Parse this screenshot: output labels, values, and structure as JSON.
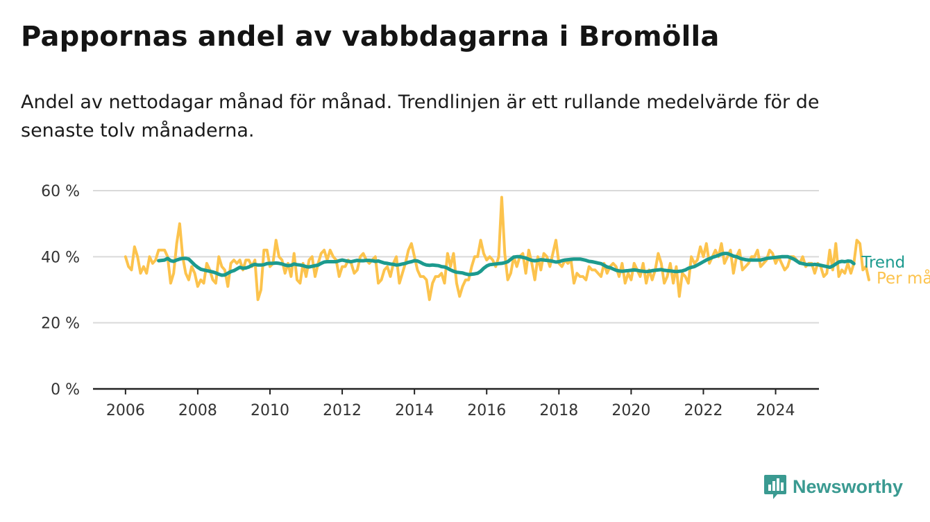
{
  "title": "Pappornas andel av vabbdagarna i Bromölla",
  "subtitle": "Andel av nettodagar månad för månad. Trendlinjen är ett rullande medelvärde för de senaste tolv månaderna.",
  "brand": {
    "name": "Newsworthy",
    "color": "#3a9a91"
  },
  "chart_data": {
    "type": "line",
    "x_ticks": [
      "2006",
      "2008",
      "2010",
      "2012",
      "2014",
      "2016",
      "2018",
      "2020",
      "2022",
      "2024"
    ],
    "y_ticks": [
      "0 %",
      "20 %",
      "40 %",
      "60 %"
    ],
    "ylim": [
      0,
      60
    ],
    "xlim": [
      2005.1,
      2025.2
    ],
    "grid": "horizontal",
    "legend": "end-of-line labels, right",
    "series": [
      {
        "name": "Per månad",
        "color": "#fcc34d",
        "start": 2006.0,
        "step_months": 1,
        "values": [
          40,
          37,
          36,
          43,
          40,
          35,
          37,
          35,
          40,
          38,
          39,
          42,
          42,
          42,
          40,
          32,
          35,
          44,
          50,
          40,
          35,
          33,
          37,
          35,
          31,
          33,
          32,
          38,
          36,
          33,
          32,
          40,
          37,
          36,
          31,
          38,
          39,
          38,
          39,
          36,
          39,
          39,
          37,
          39,
          27,
          30,
          42,
          42,
          37,
          38,
          45,
          40,
          39,
          35,
          38,
          34,
          41,
          33,
          32,
          38,
          34,
          39,
          40,
          34,
          38,
          41,
          42,
          39,
          42,
          40,
          39,
          34,
          37,
          37,
          39,
          38,
          35,
          36,
          40,
          41,
          39,
          38,
          39,
          40,
          32,
          33,
          36,
          37,
          34,
          38,
          40,
          32,
          35,
          38,
          42,
          44,
          40,
          36,
          34,
          34,
          33,
          27,
          32,
          34,
          34,
          35,
          32,
          41,
          37,
          41,
          32,
          28,
          31,
          33,
          33,
          37,
          40,
          40,
          45,
          41,
          39,
          40,
          39,
          37,
          40,
          58,
          41,
          33,
          35,
          40,
          37,
          40,
          41,
          35,
          42,
          38,
          33,
          40,
          36,
          41,
          40,
          37,
          41,
          45,
          38,
          37,
          39,
          38,
          39,
          32,
          35,
          34,
          34,
          33,
          37,
          36,
          36,
          35,
          34,
          38,
          35,
          37,
          38,
          37,
          34,
          38,
          32,
          35,
          33,
          38,
          36,
          34,
          38,
          32,
          36,
          33,
          36,
          41,
          38,
          32,
          34,
          38,
          32,
          37,
          28,
          35,
          34,
          32,
          40,
          38,
          39,
          43,
          40,
          44,
          38,
          40,
          42,
          40,
          44,
          38,
          40,
          42,
          35,
          40,
          42,
          36,
          37,
          38,
          40,
          40,
          42,
          37,
          38,
          39,
          42,
          41,
          38,
          40,
          38,
          36,
          37,
          40,
          40,
          39,
          38,
          40,
          37,
          38,
          38,
          35,
          38,
          37,
          34,
          35,
          42,
          36,
          44,
          34,
          36,
          35,
          38,
          35,
          38,
          45,
          44,
          36,
          37,
          33
        ]
      },
      {
        "name": "Trend",
        "color": "#1c9a8e",
        "start": 2006.917,
        "step_months": 1,
        "values": [
          38.8,
          38.9,
          39.0,
          39.5,
          38.8,
          38.6,
          39.0,
          39.3,
          39.5,
          39.5,
          39.3,
          38.4,
          37.5,
          36.8,
          36.2,
          36.0,
          35.8,
          35.6,
          35.4,
          35.1,
          34.7,
          34.4,
          34.5,
          35.0,
          35.5,
          35.8,
          36.3,
          36.8,
          36.5,
          36.6,
          36.9,
          37.4,
          37.7,
          37.5,
          37.5,
          37.6,
          37.9,
          38.0,
          38.0,
          38.1,
          38.0,
          37.8,
          37.5,
          37.3,
          37.4,
          37.8,
          37.6,
          37.5,
          37.3,
          37.0,
          36.9,
          37.1,
          37.3,
          37.5,
          38.0,
          38.4,
          38.5,
          38.5,
          38.5,
          38.5,
          38.8,
          39.0,
          38.8,
          38.6,
          38.5,
          38.7,
          38.9,
          38.8,
          38.8,
          38.9,
          38.9,
          38.8,
          38.6,
          38.7,
          38.4,
          38.1,
          38.0,
          37.8,
          37.7,
          37.5,
          37.6,
          37.8,
          38.0,
          38.3,
          38.5,
          38.8,
          38.7,
          38.3,
          37.8,
          37.5,
          37.4,
          37.5,
          37.4,
          37.3,
          37.0,
          36.9,
          36.5,
          36.0,
          35.6,
          35.3,
          35.2,
          35.1,
          34.8,
          34.6,
          34.7,
          34.8,
          35.0,
          35.6,
          36.5,
          37.2,
          37.6,
          37.7,
          37.8,
          37.9,
          38.0,
          38.2,
          38.5,
          39.2,
          39.9,
          40.0,
          40.0,
          39.8,
          39.6,
          39.2,
          38.9,
          38.8,
          38.9,
          39.1,
          39.0,
          38.9,
          38.8,
          38.6,
          38.4,
          38.5,
          38.8,
          39.0,
          39.1,
          39.2,
          39.3,
          39.3,
          39.3,
          39.1,
          38.9,
          38.6,
          38.5,
          38.3,
          38.1,
          37.9,
          37.4,
          36.9,
          36.7,
          36.3,
          35.9,
          35.7,
          35.6,
          35.7,
          35.8,
          35.9,
          36.0,
          35.9,
          35.7,
          35.6,
          35.5,
          35.6,
          35.8,
          35.9,
          36.0,
          36.1,
          35.9,
          35.8,
          35.7,
          35.6,
          35.5,
          35.6,
          35.7,
          36.0,
          36.5,
          36.8,
          37.0,
          37.5,
          38.0,
          38.5,
          39.0,
          39.4,
          39.8,
          40.1,
          40.4,
          40.8,
          41.0,
          41.0,
          40.6,
          40.2,
          40.0,
          39.6,
          39.3,
          39.1,
          39.0,
          39.0,
          39.0,
          39.0,
          39.0,
          39.2,
          39.5,
          39.6,
          39.7,
          39.8,
          39.9,
          40.0,
          40.0,
          40.0,
          39.7,
          39.3,
          38.7,
          38.1,
          37.9,
          37.7,
          37.6,
          37.6,
          37.7,
          37.6,
          37.4,
          37.2,
          37.0,
          36.8,
          37.2,
          37.8,
          38.4,
          38.6,
          38.5,
          38.7,
          38.6,
          37.9
        ]
      }
    ]
  }
}
